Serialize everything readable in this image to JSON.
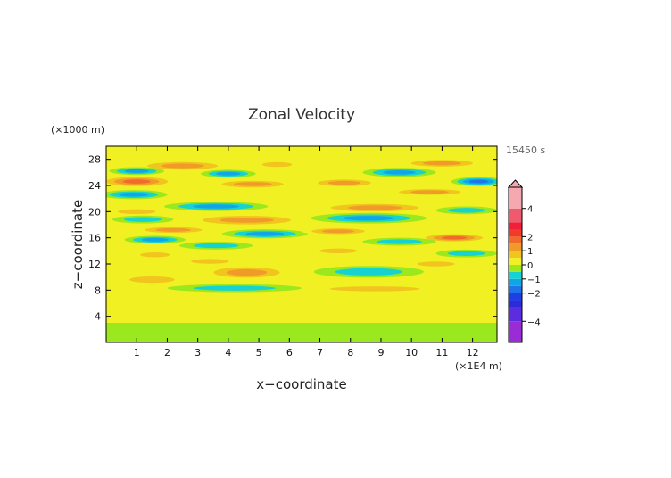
{
  "chart_data": {
    "type": "heatmap",
    "title": "Zonal Velocity",
    "xlabel": "x−coordinate",
    "ylabel": "z−coordinate",
    "x_unit": "(×1E4 m)",
    "y_unit": "(×1000 m)",
    "time_label": "15450 s",
    "xlim": [
      0,
      12.8
    ],
    "ylim": [
      0,
      30
    ],
    "x_ticks": [
      1,
      2,
      3,
      4,
      5,
      6,
      7,
      8,
      9,
      10,
      11,
      12
    ],
    "y_ticks": [
      4,
      8,
      12,
      16,
      20,
      24,
      28
    ],
    "x_tick_labels": [
      "1",
      "2",
      "3",
      "4",
      "5",
      "6",
      "7",
      "8",
      "9",
      "10",
      "11",
      "12"
    ],
    "y_tick_labels": [
      "4",
      "8",
      "12",
      "16",
      "20",
      "24",
      "28"
    ],
    "colorbar": {
      "range": [
        -5.5,
        5.5
      ],
      "tick_values": [
        4,
        2,
        1,
        0,
        -1,
        -2,
        -4
      ],
      "tick_labels": [
        "4",
        "2",
        "1",
        "0",
        "−1",
        "−2",
        "−4"
      ],
      "bands": [
        {
          "from": -5.5,
          "to": -4.0,
          "color": "#9a2cd6"
        },
        {
          "from": -4.0,
          "to": -3.0,
          "color": "#5b2ce0"
        },
        {
          "from": -3.0,
          "to": -2.5,
          "color": "#2a2bd9"
        },
        {
          "from": -2.5,
          "to": -2.0,
          "color": "#1f3fe6"
        },
        {
          "from": -2.0,
          "to": -1.5,
          "color": "#1e74e8"
        },
        {
          "from": -1.5,
          "to": -1.0,
          "color": "#12a5e6"
        },
        {
          "from": -1.0,
          "to": -0.5,
          "color": "#16d2d0"
        },
        {
          "from": -0.5,
          "to": 0.0,
          "color": "#9ce81e"
        },
        {
          "from": 0.0,
          "to": 0.5,
          "color": "#f0f022"
        },
        {
          "from": 0.5,
          "to": 1.0,
          "color": "#f2c41e"
        },
        {
          "from": 1.0,
          "to": 1.5,
          "color": "#f09a2a"
        },
        {
          "from": 1.5,
          "to": 2.0,
          "color": "#f26a2a"
        },
        {
          "from": 2.0,
          "to": 2.5,
          "color": "#f03a2a"
        },
        {
          "from": 2.5,
          "to": 3.0,
          "color": "#f0203a"
        },
        {
          "from": 3.0,
          "to": 4.0,
          "color": "#f05a6e"
        },
        {
          "from": 4.0,
          "to": 5.5,
          "color": "#f5a8b0"
        }
      ]
    },
    "field_features": [
      {
        "x": 2.5,
        "z": 27.0,
        "sx": 1.6,
        "sz": 0.8,
        "v": 1.2
      },
      {
        "x": 1.0,
        "z": 26.2,
        "sx": 0.9,
        "sz": 0.6,
        "v": -1.1
      },
      {
        "x": 4.0,
        "z": 25.8,
        "sx": 0.9,
        "sz": 0.6,
        "v": -1.2
      },
      {
        "x": 5.6,
        "z": 27.2,
        "sx": 0.8,
        "sz": 0.6,
        "v": 0.9
      },
      {
        "x": 1.0,
        "z": 24.6,
        "sx": 1.3,
        "sz": 0.9,
        "v": 2.0
      },
      {
        "x": 4.8,
        "z": 24.2,
        "sx": 1.4,
        "sz": 0.7,
        "v": 1.3
      },
      {
        "x": 0.9,
        "z": 22.6,
        "sx": 1.1,
        "sz": 0.7,
        "v": -1.2
      },
      {
        "x": 3.6,
        "z": 20.8,
        "sx": 1.7,
        "sz": 0.7,
        "v": -1.4
      },
      {
        "x": 4.6,
        "z": 18.7,
        "sx": 2.0,
        "sz": 0.9,
        "v": 1.5
      },
      {
        "x": 1.0,
        "z": 20.0,
        "sx": 1.0,
        "sz": 0.6,
        "v": 1.0
      },
      {
        "x": 1.2,
        "z": 18.8,
        "sx": 1.0,
        "sz": 0.6,
        "v": -1.0
      },
      {
        "x": 2.2,
        "z": 17.2,
        "sx": 1.3,
        "sz": 0.6,
        "v": 1.1
      },
      {
        "x": 1.6,
        "z": 15.7,
        "sx": 1.0,
        "sz": 0.6,
        "v": -1.5
      },
      {
        "x": 5.2,
        "z": 16.6,
        "sx": 1.4,
        "sz": 0.7,
        "v": -1.2
      },
      {
        "x": 3.6,
        "z": 14.8,
        "sx": 1.2,
        "sz": 0.6,
        "v": -1.0
      },
      {
        "x": 1.6,
        "z": 13.4,
        "sx": 0.8,
        "sz": 0.6,
        "v": 1.0
      },
      {
        "x": 3.4,
        "z": 12.4,
        "sx": 1.0,
        "sz": 0.6,
        "v": 0.9
      },
      {
        "x": 4.6,
        "z": 10.7,
        "sx": 1.5,
        "sz": 1.1,
        "v": 1.2
      },
      {
        "x": 4.2,
        "z": 8.3,
        "sx": 2.2,
        "sz": 0.6,
        "v": -0.9
      },
      {
        "x": 11.0,
        "z": 27.4,
        "sx": 1.4,
        "sz": 0.7,
        "v": 1.1
      },
      {
        "x": 9.6,
        "z": 26.0,
        "sx": 1.2,
        "sz": 0.7,
        "v": -1.3
      },
      {
        "x": 12.2,
        "z": 24.6,
        "sx": 0.9,
        "sz": 0.7,
        "v": -1.8
      },
      {
        "x": 7.8,
        "z": 24.4,
        "sx": 1.2,
        "sz": 0.7,
        "v": 1.2
      },
      {
        "x": 10.6,
        "z": 23.0,
        "sx": 1.4,
        "sz": 0.6,
        "v": 1.1
      },
      {
        "x": 8.8,
        "z": 20.6,
        "sx": 2.0,
        "sz": 0.8,
        "v": 1.3
      },
      {
        "x": 8.6,
        "z": 19.0,
        "sx": 1.9,
        "sz": 0.8,
        "v": -1.4
      },
      {
        "x": 11.8,
        "z": 20.2,
        "sx": 1.0,
        "sz": 0.6,
        "v": -1.0
      },
      {
        "x": 7.6,
        "z": 17.0,
        "sx": 1.2,
        "sz": 0.6,
        "v": 1.1
      },
      {
        "x": 11.4,
        "z": 16.0,
        "sx": 1.2,
        "sz": 0.7,
        "v": 1.6
      },
      {
        "x": 9.6,
        "z": 15.4,
        "sx": 1.2,
        "sz": 0.6,
        "v": -0.9
      },
      {
        "x": 7.6,
        "z": 14.0,
        "sx": 1.0,
        "sz": 0.6,
        "v": 1.0
      },
      {
        "x": 11.8,
        "z": 13.6,
        "sx": 1.0,
        "sz": 0.6,
        "v": -1.0
      },
      {
        "x": 8.6,
        "z": 10.8,
        "sx": 1.8,
        "sz": 0.9,
        "v": -0.9
      },
      {
        "x": 8.8,
        "z": 8.2,
        "sx": 2.4,
        "sz": 0.6,
        "v": 0.9
      },
      {
        "x": 1.5,
        "z": 9.6,
        "sx": 1.2,
        "sz": 0.8,
        "v": 0.6
      },
      {
        "x": 10.8,
        "z": 12.0,
        "sx": 1.0,
        "sz": 0.6,
        "v": 0.7
      }
    ]
  }
}
